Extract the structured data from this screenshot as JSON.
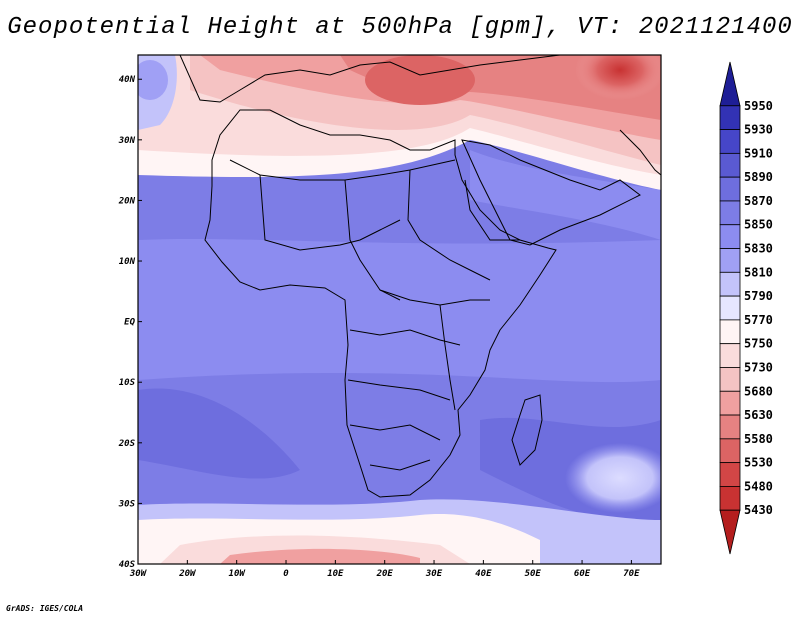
{
  "title": "Geopotential Height at 500hPa [gpm], VT: 2021121400",
  "footer": "GrADS: IGES/COLA",
  "map": {
    "lon_range": [
      -30,
      76
    ],
    "lat_range": [
      -40,
      44
    ],
    "lon_ticks": [
      "30W",
      "20W",
      "10W",
      "0",
      "10E",
      "20E",
      "30E",
      "40E",
      "50E",
      "60E",
      "70E"
    ],
    "lat_ticks": [
      "40N",
      "30N",
      "20N",
      "10N",
      "EQ",
      "10S",
      "20S",
      "30S",
      "40S"
    ]
  },
  "colorbar": {
    "levels": [
      "5950",
      "5930",
      "5910",
      "5890",
      "5870",
      "5850",
      "5830",
      "5810",
      "5790",
      "5770",
      "5750",
      "5730",
      "5680",
      "5630",
      "5580",
      "5530",
      "5480",
      "5430"
    ],
    "colors": [
      "#1e1e96",
      "#3232b4",
      "#4646c8",
      "#5a5ad2",
      "#6e6ede",
      "#7d7de6",
      "#8c8cf0",
      "#a0a0f5",
      "#c3c3fa",
      "#e6e6ff",
      "#fff5f5",
      "#fadcdc",
      "#f5c3c3",
      "#f0a0a0",
      "#e68282",
      "#dc6464",
      "#d24646",
      "#c83232",
      "#b41e1e"
    ]
  },
  "colors": {
    "background": "#ffffff",
    "frame": "#000000"
  }
}
